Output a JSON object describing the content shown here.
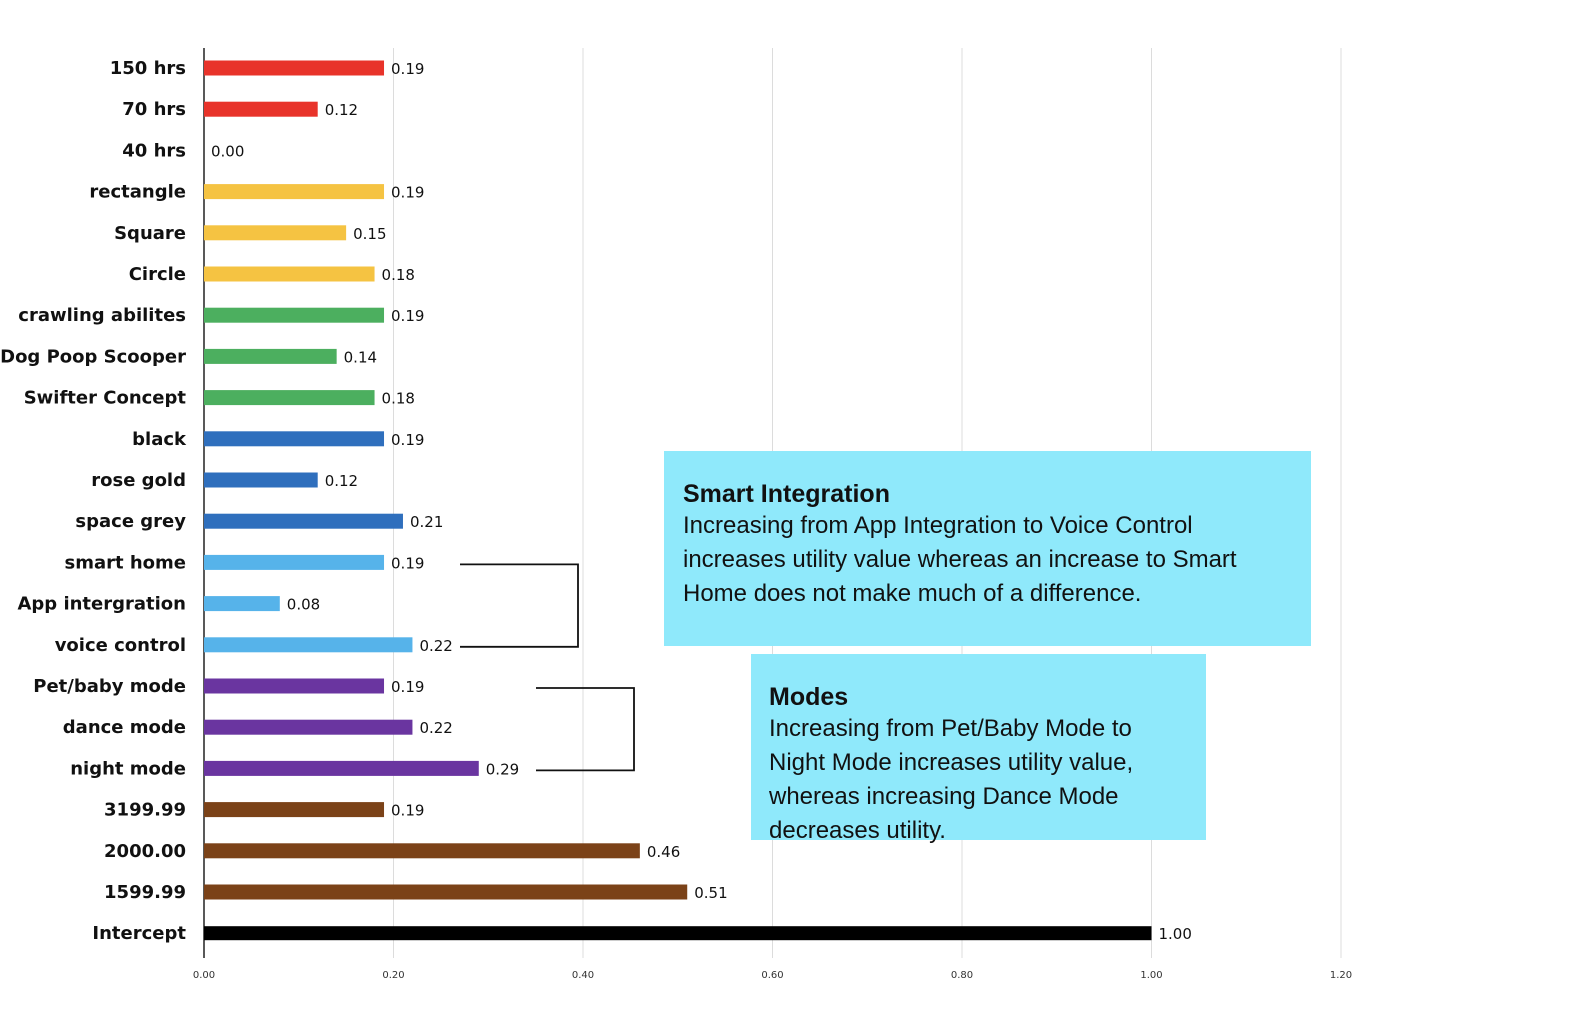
{
  "chart_data": {
    "type": "bar",
    "orientation": "horizontal",
    "categories": [
      "150 hrs",
      "70 hrs",
      "40 hrs",
      "rectangle",
      "Square",
      "Circle",
      "crawling abilites",
      "Dog Poop Scooper",
      "Swifter Concept",
      "black",
      "rose gold",
      "space grey",
      "smart home",
      "App intergration",
      "voice control",
      "Pet/baby mode",
      "dance mode",
      "night mode",
      "3199.99",
      "2000.00",
      "1599.99",
      "Intercept"
    ],
    "values": [
      0.19,
      0.12,
      0.0,
      0.19,
      0.15,
      0.18,
      0.19,
      0.14,
      0.18,
      0.19,
      0.12,
      0.21,
      0.19,
      0.08,
      0.22,
      0.19,
      0.22,
      0.29,
      0.19,
      0.46,
      0.51,
      1.0
    ],
    "value_labels": [
      "0.19",
      "0.12",
      "0.00",
      "0.19",
      "0.15",
      "0.18",
      "0.19",
      "0.14",
      "0.18",
      "0.19",
      "0.12",
      "0.21",
      "0.19",
      "0.08",
      "0.22",
      "0.19",
      "0.22",
      "0.29",
      "0.19",
      "0.46",
      "0.51",
      "1.00"
    ],
    "colors": [
      "#e8332a",
      "#e8332a",
      "#e8332a",
      "#f5c342",
      "#f5c342",
      "#f5c342",
      "#4caf5f",
      "#4caf5f",
      "#4caf5f",
      "#2f6fbd",
      "#2f6fbd",
      "#2f6fbd",
      "#56b3ea",
      "#56b3ea",
      "#56b3ea",
      "#6a35a0",
      "#6a35a0",
      "#6a35a0",
      "#7b4218",
      "#7b4218",
      "#7b4218",
      "#000000"
    ],
    "xlim": [
      0,
      1.2
    ],
    "x_ticks": [
      "0.00",
      "0.20",
      "0.40",
      "0.60",
      "0.80",
      "1.00",
      "1.20"
    ],
    "grid": "vertical",
    "title": "",
    "xlabel": "",
    "ylabel": "",
    "brackets": [
      {
        "from": "smart home",
        "to": "voice control"
      },
      {
        "from": "Pet/baby mode",
        "to": "night mode"
      }
    ]
  },
  "callouts": {
    "smart": {
      "title": "Smart Integration",
      "body": "Increasing from App Integration to Voice Control increases utility value whereas an increase to Smart Home does not make much of a difference."
    },
    "modes": {
      "title": "Modes",
      "body": "Increasing from Pet/Baby Mode to Night Mode increases utility value, whereas increasing Dance Mode decreases utility."
    }
  }
}
